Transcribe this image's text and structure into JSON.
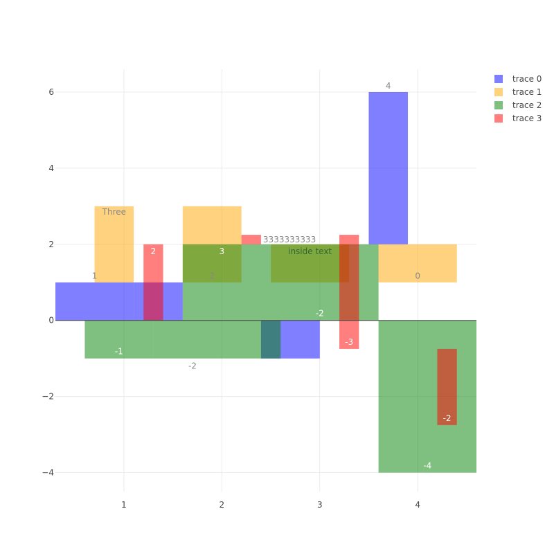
{
  "chart_data": {
    "type": "bar",
    "barmode": "overlay",
    "xlim": [
      0.3,
      4.6
    ],
    "ylim": [
      -4.5,
      6.6
    ],
    "x_ticks": [
      1,
      2,
      3,
      4
    ],
    "y_ticks": [
      -4,
      -2,
      0,
      2,
      4,
      6
    ],
    "y_tick_labels": [
      "−4",
      "−2",
      "0",
      "2",
      "4",
      "6"
    ],
    "grid": true,
    "legend_position": "top-right",
    "series": [
      {
        "name": "trace 0",
        "color": "#0000ff",
        "opacity": 0.5,
        "bars": [
          {
            "x0": 0.3,
            "x1": 1.1,
            "base": 0,
            "value": 1,
            "label": "1",
            "label_pos": "outside"
          },
          {
            "x0": 1.1,
            "x1": 1.6,
            "base": 0,
            "value": 1,
            "label": "",
            "label_pos": "none"
          },
          {
            "x0": 2.4,
            "x1": 3.0,
            "base": 0,
            "value": -1,
            "label": "",
            "label_pos": "none"
          },
          {
            "x0": 3.5,
            "x1": 3.9,
            "base": 2,
            "value": 4,
            "label": "4",
            "label_pos": "outside"
          }
        ]
      },
      {
        "name": "trace 1",
        "color": "#ffa500",
        "opacity": 0.5,
        "bars": [
          {
            "x0": 0.7,
            "x1": 1.1,
            "base": 1,
            "value": 2,
            "label": "Three",
            "label_pos": "inside-top-small"
          },
          {
            "x0": 1.6,
            "x1": 2.2,
            "base": 1,
            "value": 2,
            "label": "2",
            "label_pos": "outside-below-base"
          },
          {
            "x0": 2.5,
            "x1": 3.3,
            "base": 1,
            "value": 1,
            "label": "inside text",
            "label_pos": "inside"
          },
          {
            "x0": 3.6,
            "x1": 4.4,
            "base": 1,
            "value": 1,
            "label": "0",
            "label_pos": "outside-below-base"
          }
        ]
      },
      {
        "name": "trace 2",
        "color": "#008000",
        "opacity": 0.5,
        "bars": [
          {
            "x0": 0.6,
            "x1": 1.3,
            "base": 0,
            "value": -1,
            "label": "-1",
            "label_pos": "inside"
          },
          {
            "x0": 1.3,
            "x1": 2.1,
            "base": 0,
            "value": -1,
            "label": "-2",
            "label_pos": "outside"
          },
          {
            "x0": 1.6,
            "x1": 2.4,
            "base": 0,
            "value": 2,
            "label": "3",
            "label_pos": "inside"
          },
          {
            "x0": 2.1,
            "x1": 2.6,
            "base": 0,
            "value": -1,
            "label": "",
            "label_pos": "none"
          },
          {
            "x0": 2.4,
            "x1": 3.6,
            "base": 0,
            "value": 2,
            "label": "-2",
            "label_pos": "inside-bottom"
          },
          {
            "x0": 3.6,
            "x1": 4.6,
            "base": 0,
            "value": -4,
            "label": "-4",
            "label_pos": "inside"
          }
        ]
      },
      {
        "name": "trace 3",
        "color": "#ff0000",
        "opacity": 0.5,
        "bars": [
          {
            "x0": 1.2,
            "x1": 1.4,
            "base": 0,
            "value": 2,
            "label": "2",
            "label_pos": "inside"
          },
          {
            "x0": 2.2,
            "x1": 2.4,
            "base": 2,
            "value": 0.25,
            "label": "3333333333",
            "label_pos": "outside-right"
          },
          {
            "x0": 3.2,
            "x1": 3.4,
            "base": -0.75,
            "value": 3,
            "label": "-3",
            "label_pos": "inside-bottom"
          },
          {
            "x0": 4.2,
            "x1": 4.4,
            "base": -0.75,
            "value": -2,
            "label": "-2",
            "label_pos": "inside"
          }
        ]
      }
    ]
  }
}
